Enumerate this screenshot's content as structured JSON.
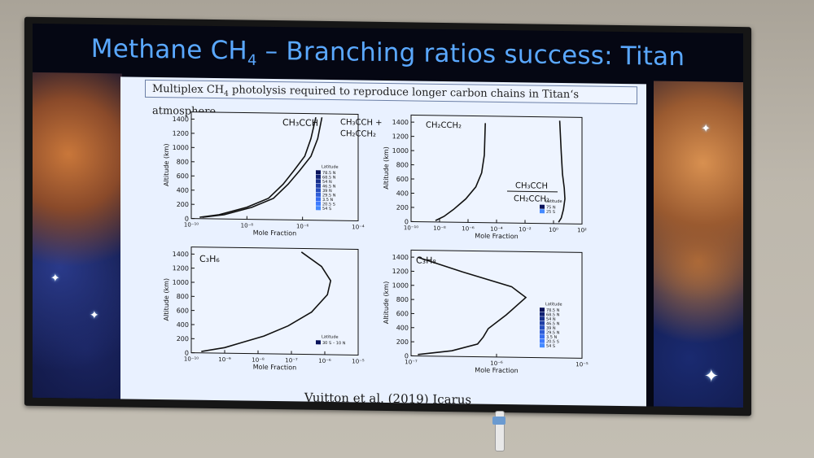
{
  "slide": {
    "title_main": "Methane CH",
    "title_sub": "4",
    "title_rest": " – Branching ratios success: Titan",
    "caption_a": "Multiplex CH",
    "caption_sub": "4",
    "caption_b": " photolysis required to reproduce longer carbon chains in Titan‘s atmosphere.",
    "citation": "Vuitton et al. (2019) Icarus"
  },
  "chart_data": [
    {
      "type": "line",
      "panel": "top-left",
      "ylabel": "Altitude (km)",
      "xlabel": "Mole Fraction",
      "xscale": "log",
      "xlim": [
        1e-10,
        0.0001
      ],
      "ylim": [
        0,
        1500
      ],
      "x_ticks": [
        "10⁻¹⁰",
        "10⁻⁸",
        "10⁻⁶",
        "10⁻⁴"
      ],
      "y_ticks": [
        "0",
        "200",
        "400",
        "600",
        "800",
        "1000",
        "1200",
        "1400"
      ],
      "series": [
        {
          "name": "CH₃CCH",
          "x": [
            2e-10,
            1e-09,
            1e-08,
            6e-08,
            2e-07,
            5e-07,
            1.2e-06,
            2e-06,
            3e-06
          ],
          "y": [
            20,
            60,
            170,
            300,
            500,
            700,
            900,
            1150,
            1450
          ]
        },
        {
          "name": "CH₃CCH + CH₂CCH₂",
          "x": [
            2.5e-10,
            1.5e-09,
            1.5e-08,
            9e-08,
            3e-07,
            8e-07,
            2e-06,
            3.5e-06,
            5e-06
          ],
          "y": [
            20,
            60,
            170,
            300,
            500,
            700,
            900,
            1150,
            1450
          ]
        }
      ],
      "legend_title": "Latitude",
      "legend": [
        "78.5 N",
        "68.5 N",
        "54 N",
        "46.5 N",
        "39 N",
        "29.5 N",
        "3.5 N",
        "20.5 S",
        "54 S"
      ]
    },
    {
      "type": "line",
      "panel": "top-right",
      "ylabel": "Altitude (km)",
      "xlabel": "Mole Fraction",
      "xscale": "log",
      "xlim": [
        1e-12,
        100.0
      ],
      "ylim": [
        0,
        1500
      ],
      "x_ticks": [
        "10⁻¹⁰",
        "10⁻⁸",
        "10⁻⁶",
        "10⁻⁴",
        "10⁻²",
        "10⁰",
        "10²"
      ],
      "y_ticks": [
        "0",
        "200",
        "400",
        "600",
        "800",
        "1000",
        "1200",
        "1400"
      ],
      "series": [
        {
          "name": "CH₂CCH₂",
          "x": [
            1e-10,
            5e-10,
            3e-09,
            3e-08,
            2e-07,
            6e-07,
            1e-06,
            1.2e-06
          ],
          "y": [
            20,
            80,
            180,
            330,
            500,
            700,
            950,
            1400
          ]
        },
        {
          "name": "CH₃CCH / CH₂CCH₂",
          "x": [
            1.2,
            2,
            3,
            4,
            3.5,
            2.5,
            2,
            1.5
          ],
          "y": [
            20,
            80,
            200,
            350,
            500,
            700,
            1000,
            1450
          ]
        }
      ],
      "label_num": "CH₃CCH",
      "label_den": "CH₂CCH₂",
      "legend_title": "Latitude",
      "legend": [
        "75 N",
        "25 S"
      ]
    },
    {
      "type": "line",
      "panel": "bottom-left",
      "ylabel": "Altitude (km)",
      "xlabel": "Mole Fraction",
      "xscale": "log",
      "xlim": [
        1e-10,
        1e-05
      ],
      "ylim": [
        0,
        1500
      ],
      "x_ticks": [
        "10⁻¹⁰",
        "10⁻⁹",
        "10⁻⁸",
        "10⁻⁷",
        "10⁻⁶",
        "10⁻⁵"
      ],
      "y_ticks": [
        "0",
        "200",
        "400",
        "600",
        "800",
        "1000",
        "1200",
        "1400"
      ],
      "series": [
        {
          "name": "C₃H₆",
          "x": [
            2e-10,
            1e-09,
            3e-09,
            1.5e-08,
            8e-08,
            4e-07,
            1.2e-06,
            1.5e-06,
            8e-07,
            2e-07
          ],
          "y": [
            20,
            80,
            150,
            250,
            400,
            600,
            850,
            1050,
            1250,
            1450
          ]
        }
      ],
      "legend_title": "Latitude",
      "legend": [
        "30 S – 10 N"
      ]
    },
    {
      "type": "line",
      "panel": "bottom-right",
      "ylabel": "Altitude (km)",
      "xlabel": "Mole Fraction",
      "xscale": "log",
      "xlim": [
        1e-07,
        1e-05
      ],
      "ylim": [
        0,
        1500
      ],
      "x_ticks": [
        "10⁻⁷",
        "10⁻⁶",
        "10⁻⁵"
      ],
      "y_ticks": [
        "0",
        "200",
        "400",
        "600",
        "800",
        "1000",
        "1200",
        "1400"
      ],
      "series": [
        {
          "name": "C₃H₈",
          "x": [
            1.2e-07,
            3e-07,
            6e-07,
            7e-07,
            8e-07,
            1.3e-06,
            2.2e-06,
            1.5e-06,
            4e-07,
            1.2e-07
          ],
          "y": [
            20,
            80,
            180,
            280,
            400,
            600,
            850,
            1000,
            1200,
            1400
          ]
        }
      ],
      "legend_title": "Latitude",
      "legend": [
        "78.5 N",
        "68.5 N",
        "54 N",
        "46.5 N",
        "39 N",
        "29.5 N",
        "3.5 N",
        "20.5 S",
        "54 S"
      ]
    }
  ]
}
